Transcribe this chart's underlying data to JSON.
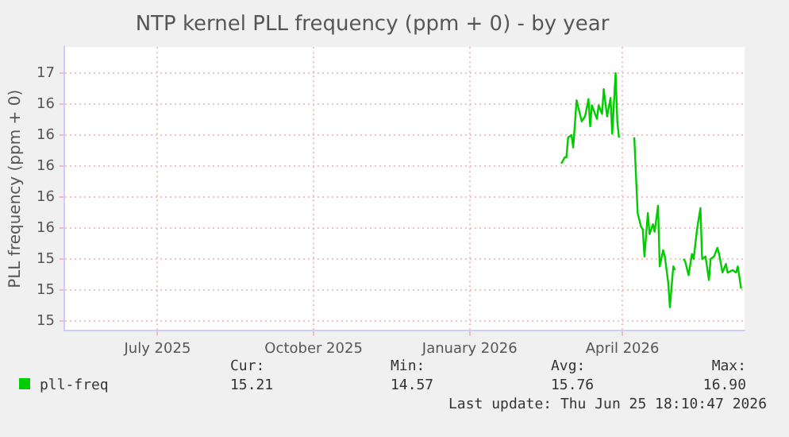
{
  "chart_data": {
    "type": "line",
    "title": "NTP kernel PLL frequency (ppm + 0) - by year",
    "ylabel": "PLL frequency (ppm + 0)",
    "xlim": [
      "2025-05-07",
      "2026-06-12"
    ],
    "xticks": [
      {
        "value": "2025-07-01",
        "label": "July 2025"
      },
      {
        "value": "2025-10-01",
        "label": "October 2025"
      },
      {
        "value": "2026-01-01",
        "label": "January 2026"
      },
      {
        "value": "2026-04-01",
        "label": "April 2026"
      }
    ],
    "ylim": [
      14.67,
      16.96
    ],
    "yticks": [
      {
        "value": 14.75,
        "label": "15"
      },
      {
        "value": 15.0,
        "label": "15"
      },
      {
        "value": 15.25,
        "label": "15"
      },
      {
        "value": 15.5,
        "label": "16"
      },
      {
        "value": 15.75,
        "label": "16"
      },
      {
        "value": 16.0,
        "label": "16"
      },
      {
        "value": 16.25,
        "label": "16"
      },
      {
        "value": 16.5,
        "label": "16"
      },
      {
        "value": 16.75,
        "label": "17"
      }
    ],
    "grid": true,
    "legend": "bottom",
    "marker": "none",
    "line_style": "solid",
    "x": [
      "2026-02-24",
      "2026-02-26",
      "2026-02-27",
      "2026-02-28",
      "2026-03-02",
      "2026-03-03",
      "2026-03-05",
      "2026-03-07",
      "2026-03-08",
      "2026-03-10",
      "2026-03-12",
      "2026-03-13",
      "2026-03-14",
      "2026-03-17",
      "2026-03-18",
      "2026-03-20",
      "2026-03-21",
      "2026-03-23",
      "2026-03-25",
      "2026-03-26",
      "2026-03-28",
      "2026-03-29",
      "2026-03-30",
      "2026-04-03",
      "2026-04-08",
      "2026-04-10",
      "2026-04-12",
      "2026-04-13",
      "2026-04-14",
      "2026-04-16",
      "2026-04-17",
      "2026-04-19",
      "2026-04-20",
      "2026-04-22",
      "2026-04-23",
      "2026-04-25",
      "2026-04-26",
      "2026-04-28",
      "2026-04-29",
      "2026-05-01",
      "2026-05-02",
      "2026-05-04",
      "2026-05-07",
      "2026-05-08",
      "2026-05-10",
      "2026-05-12",
      "2026-05-13",
      "2026-05-15",
      "2026-05-17",
      "2026-05-18",
      "2026-05-20",
      "2026-05-22",
      "2026-05-23",
      "2026-05-25",
      "2026-05-27",
      "2026-05-28",
      "2026-05-30",
      "2026-06-01",
      "2026-06-02",
      "2026-06-05",
      "2026-06-07",
      "2026-06-08",
      "2026-06-10"
    ],
    "series": [
      {
        "name": "pll-freq",
        "color": "#00cc00",
        "values": [
          16.02,
          16.07,
          16.07,
          16.23,
          16.25,
          16.15,
          16.53,
          16.42,
          16.36,
          16.4,
          16.54,
          16.32,
          16.49,
          16.38,
          16.49,
          16.42,
          16.62,
          16.4,
          16.55,
          16.26,
          16.75,
          16.36,
          16.23,
          null,
          16.23,
          15.62,
          15.51,
          15.49,
          15.27,
          15.62,
          15.45,
          15.53,
          15.47,
          15.68,
          15.19,
          15.32,
          15.27,
          15.06,
          14.86,
          15.19,
          15.16,
          null,
          15.25,
          15.23,
          15.12,
          15.29,
          15.25,
          15.49,
          15.66,
          15.25,
          15.27,
          15.08,
          15.25,
          15.27,
          15.34,
          15.29,
          15.14,
          15.21,
          15.14,
          15.16,
          15.14,
          15.19,
          15.01
        ]
      }
    ],
    "annotations": [
      "Cur:",
      "Min:",
      "Avg:",
      "Max:",
      "15.21",
      "14.57",
      "15.76",
      "16.90",
      "Last update: Thu Jun 25 18:10:47 2026"
    ]
  }
}
